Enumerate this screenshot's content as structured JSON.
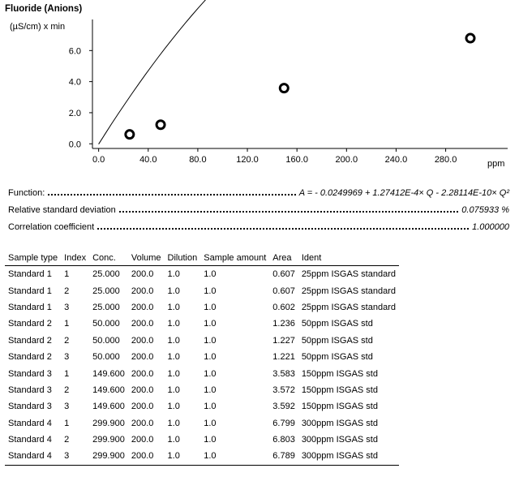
{
  "chart_data": {
    "type": "scatter",
    "title": "Fluoride (Anions)",
    "ylabel": "(µS/cm) x min",
    "xlabel": "ppm",
    "xlim": [
      -5,
      330
    ],
    "ylim": [
      -0.3,
      8.0
    ],
    "xticks": [
      "0.0",
      "40.0",
      "80.0",
      "120.0",
      "160.0",
      "200.0",
      "240.0",
      "280.0"
    ],
    "xtick_values": [
      0,
      40,
      80,
      120,
      160,
      200,
      240,
      280
    ],
    "yticks": [
      "0.0",
      "2.0",
      "4.0",
      "6.0"
    ],
    "ytick_values": [
      0,
      2,
      4,
      6
    ],
    "grid": false,
    "points": [
      {
        "x": 25.0,
        "y": 0.605
      },
      {
        "x": 50.0,
        "y": 1.228
      },
      {
        "x": 149.6,
        "y": 3.582
      },
      {
        "x": 299.9,
        "y": 6.797
      }
    ],
    "fit": {
      "a": -0.0249969,
      "b": 0.000127412,
      "c": -2.28114e-10,
      "units_scale": 1000
    }
  },
  "stats": {
    "function_label": "Function:",
    "function_value": "A = - 0.0249969 + 1.27412E-4× Q - 2.28114E-10× Q²",
    "rsd_label": "Relative standard deviation",
    "rsd_value": "0.075933 %",
    "corr_label": "Correlation coefficient",
    "corr_value": "1.000000"
  },
  "table": {
    "headers": [
      "Sample type",
      "Index",
      "Conc.",
      "Volume",
      "Dilution",
      "Sample amount",
      "Area",
      "Ident"
    ],
    "rows": [
      [
        "Standard 1",
        "1",
        "25.000",
        "200.0",
        "1.0",
        "1.0",
        "0.607",
        "25ppm ISGAS standard"
      ],
      [
        "Standard 1",
        "2",
        "25.000",
        "200.0",
        "1.0",
        "1.0",
        "0.607",
        "25ppm ISGAS standard"
      ],
      [
        "Standard 1",
        "3",
        "25.000",
        "200.0",
        "1.0",
        "1.0",
        "0.602",
        "25ppm ISGAS standard"
      ],
      [
        "Standard 2",
        "1",
        "50.000",
        "200.0",
        "1.0",
        "1.0",
        "1.236",
        "50ppm ISGAS std"
      ],
      [
        "Standard 2",
        "2",
        "50.000",
        "200.0",
        "1.0",
        "1.0",
        "1.227",
        "50ppm ISGAS std"
      ],
      [
        "Standard 2",
        "3",
        "50.000",
        "200.0",
        "1.0",
        "1.0",
        "1.221",
        "50ppm ISGAS std"
      ],
      [
        "Standard 3",
        "1",
        "149.600",
        "200.0",
        "1.0",
        "1.0",
        "3.583",
        "150ppm ISGAS std"
      ],
      [
        "Standard 3",
        "2",
        "149.600",
        "200.0",
        "1.0",
        "1.0",
        "3.572",
        "150ppm ISGAS std"
      ],
      [
        "Standard 3",
        "3",
        "149.600",
        "200.0",
        "1.0",
        "1.0",
        "3.592",
        "150ppm ISGAS std"
      ],
      [
        "Standard 4",
        "1",
        "299.900",
        "200.0",
        "1.0",
        "1.0",
        "6.799",
        "300ppm ISGAS std"
      ],
      [
        "Standard 4",
        "2",
        "299.900",
        "200.0",
        "1.0",
        "1.0",
        "6.803",
        "300ppm ISGAS std"
      ],
      [
        "Standard 4",
        "3",
        "299.900",
        "200.0",
        "1.0",
        "1.0",
        "6.789",
        "300ppm ISGAS std"
      ]
    ]
  }
}
